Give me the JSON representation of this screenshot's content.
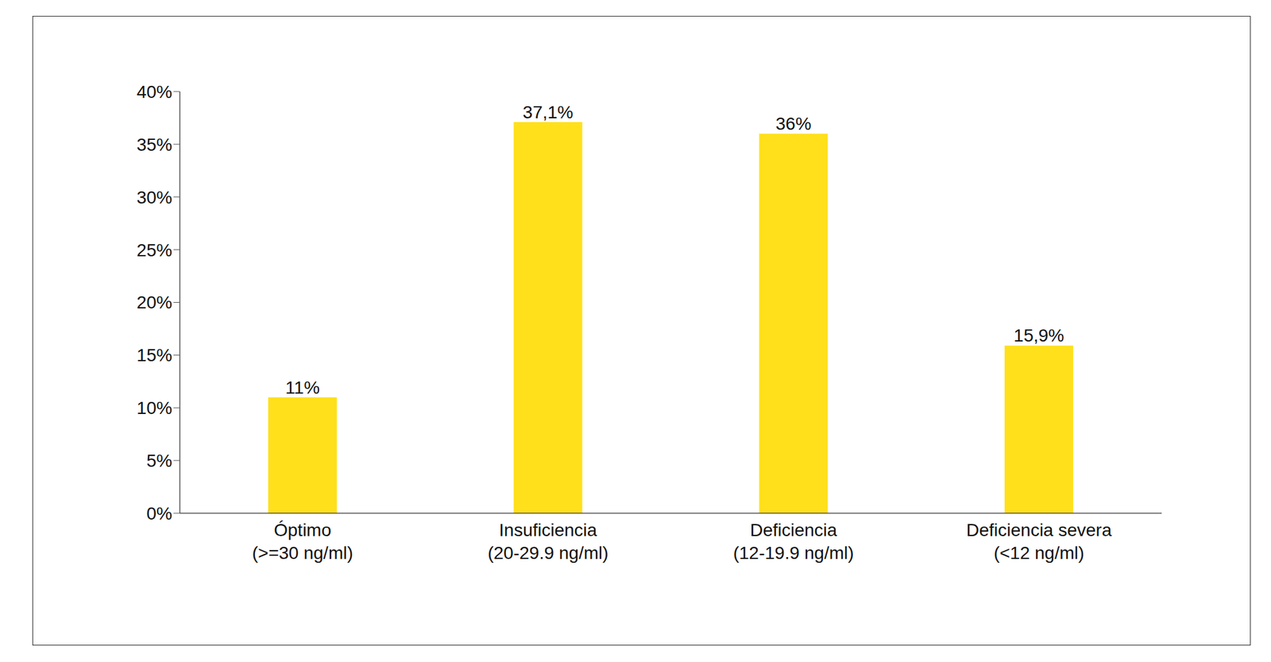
{
  "chart_data": {
    "type": "bar",
    "categories": [
      "Óptimo\n(>=30 ng/ml)",
      "Insuficiencia\n(20-29.9 ng/ml)",
      "Deficiencia\n(12-19.9 ng/ml)",
      "Deficiencia severa\n(<12 ng/ml)"
    ],
    "values": [
      11,
      37.1,
      36,
      15.9
    ],
    "value_labels": [
      "11%",
      "37,1%",
      "36%",
      "15,9%"
    ],
    "color": "#ffe01b",
    "ylim": [
      0,
      40
    ],
    "yticks": [
      {
        "value": 0,
        "label": "0%"
      },
      {
        "value": 5,
        "label": "5%"
      },
      {
        "value": 10,
        "label": "10%"
      },
      {
        "value": 15,
        "label": "15%"
      },
      {
        "value": 20,
        "label": "20%"
      },
      {
        "value": 25,
        "label": "25%"
      },
      {
        "value": 30,
        "label": "30%"
      },
      {
        "value": 35,
        "label": "35%"
      },
      {
        "value": 40,
        "label": "40%"
      }
    ],
    "grid": false,
    "data_labels": true
  }
}
